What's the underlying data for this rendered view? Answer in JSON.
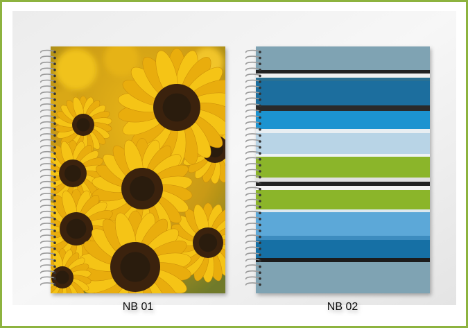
{
  "products": [
    {
      "label": "NB 01"
    },
    {
      "label": "NB 02"
    }
  ]
}
